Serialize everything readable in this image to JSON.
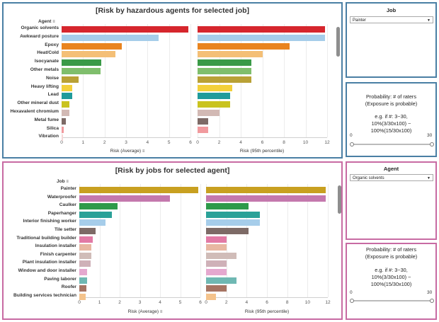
{
  "job_panel": {
    "title": "[Risk by hazardous agents for selected job]",
    "row_header": "Agent",
    "left_axis_title": "Risk (Average)",
    "right_axis_title": "Risk (95th percentile)"
  },
  "agent_panel": {
    "title": "[Risk by jobs for selected agent]",
    "row_header": "Job",
    "left_axis_title": "Risk (Average)",
    "right_axis_title": "Risk (95th percentile)"
  },
  "sort_icon": "sort-descending-icon",
  "job_filter": {
    "label": "Job",
    "value": "Painter"
  },
  "agent_filter": {
    "label": "Agent",
    "value": "Organic solvents"
  },
  "prob_filter_top": {
    "title1": "Probability: # of raters",
    "title2": "(Exposure is probable)",
    "ex1": "e.g. if #: 3~30,",
    "ex2": "10%(3/30x100) ~",
    "ex3": "100%(15/30x100)",
    "min": "0",
    "max": "30"
  },
  "prob_filter_bottom": {
    "title1": "Probability: # of raters",
    "title2": "(Exposure is probable)",
    "ex1": "e.g. if #: 3~30,",
    "ex2": "10%(3/30x100) ~",
    "ex3": "100%(15/30x100)",
    "min": "0",
    "max": "30"
  },
  "chart_data": [
    {
      "type": "bar",
      "orientation": "horizontal",
      "title": "[Risk by hazardous agents for selected job]",
      "selected_job": "Painter",
      "categories": [
        "Organic solvents",
        "Awkward posture",
        "Epoxy",
        "Heat/Cold",
        "Isocyanate",
        "Other metals",
        "Noise",
        "Heavy lifting",
        "Lead",
        "Other mineral dust",
        "Hexavalent chromium",
        "Metal fume",
        "Silica",
        "Vibration"
      ],
      "colors": [
        "#d6262d",
        "#a6cdea",
        "#e9841f",
        "#f4bf76",
        "#3a9a47",
        "#7fbe6c",
        "#b9a136",
        "#f3d03b",
        "#1f9b9b",
        "#c9c31f",
        "#d2b9b4",
        "#7d6a66",
        "#f19a9e",
        "#f5d7d7"
      ],
      "series": [
        {
          "name": "Risk (Average)",
          "values": [
            5.9,
            4.5,
            2.8,
            2.5,
            1.85,
            1.8,
            0.8,
            0.5,
            0.48,
            0.35,
            0.35,
            0.2,
            0.1,
            0.05
          ],
          "xlim": [
            0,
            6
          ],
          "ticks": [
            0,
            1,
            2,
            3,
            4,
            5,
            6
          ]
        },
        {
          "name": "Risk (95th percentile)",
          "values": [
            11.8,
            11.8,
            8.5,
            6.0,
            5.0,
            5.0,
            5.0,
            3.2,
            3.0,
            3.0,
            2.0,
            1.0,
            1.0,
            0
          ],
          "xlim": [
            0,
            12
          ],
          "ticks": [
            0,
            2,
            4,
            6,
            8,
            10,
            12
          ]
        }
      ]
    },
    {
      "type": "bar",
      "orientation": "horizontal",
      "title": "[Risk by jobs for selected agent]",
      "selected_agent": "Organic solvents",
      "categories": [
        "Painter",
        "Waterproofer",
        "Caulker",
        "Paperhanger",
        "Interior finishing worker",
        "Tile setter",
        "Traditional building builder",
        "Insulation installer",
        "Finish carpenter",
        "Plant insulation installer",
        "Window and door installer",
        "Paving laborer",
        "Roofer",
        "Building services technician"
      ],
      "colors": [
        "#c8a020",
        "#c478ad",
        "#2e9a4a",
        "#2aa198",
        "#a6cdea",
        "#7d6a66",
        "#e27aa5",
        "#e8b7a2",
        "#d0bcb8",
        "#cfb1b8",
        "#e5a8cf",
        "#6fb8b3",
        "#a67463",
        "#f4c38c"
      ],
      "series": [
        {
          "name": "Risk (Average)",
          "values": [
            5.9,
            4.5,
            1.9,
            1.6,
            1.3,
            0.8,
            0.65,
            0.6,
            0.6,
            0.55,
            0.4,
            0.4,
            0.35,
            0.3
          ],
          "xlim": [
            0,
            6
          ],
          "ticks": [
            0,
            1,
            2,
            3,
            4,
            5,
            6
          ]
        },
        {
          "name": "Risk (95th percentile)",
          "values": [
            11.8,
            11.8,
            4.2,
            5.3,
            5.3,
            4.2,
            2.0,
            2.0,
            3.0,
            2.0,
            2.0,
            3.0,
            2.0,
            1.0
          ],
          "xlim": [
            0,
            12
          ],
          "ticks": [
            0,
            2,
            4,
            6,
            8,
            10,
            12
          ]
        }
      ]
    }
  ]
}
